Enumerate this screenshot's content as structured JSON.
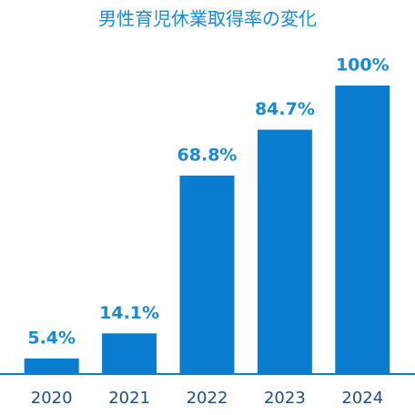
{
  "chart_data": {
    "type": "bar",
    "title": "男性育児休業取得率の変化",
    "categories": [
      "2020",
      "2021",
      "2022",
      "2023",
      "2024"
    ],
    "values": [
      5.4,
      14.1,
      68.8,
      84.7,
      100
    ],
    "value_labels": [
      "5.4%",
      "14.1%",
      "68.8%",
      "84.7%",
      "100%"
    ],
    "color": "#0a7dd0"
  }
}
